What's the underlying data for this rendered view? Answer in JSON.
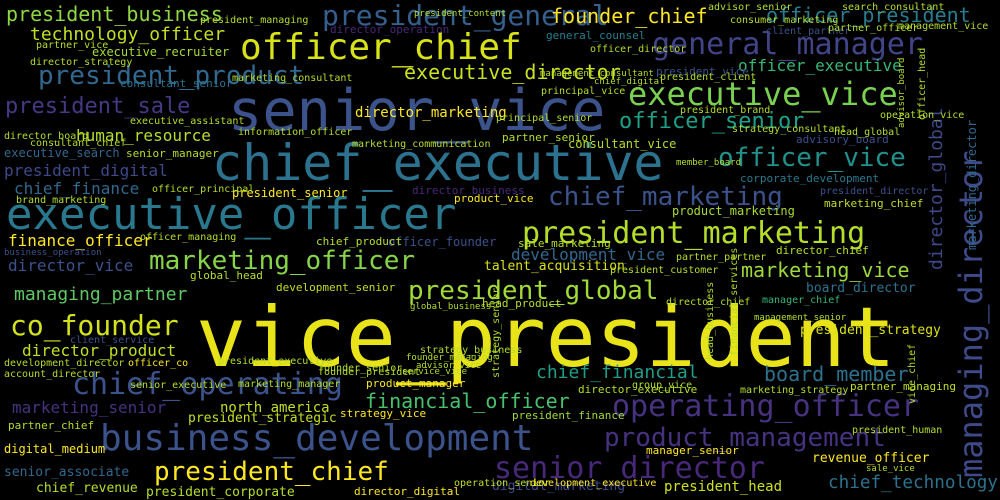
{
  "words": [
    {
      "text": "vice_president",
      "color": "#e8e419"
    },
    {
      "text": "senior_vice",
      "color": "#3b528b"
    },
    {
      "text": "chief_executive",
      "color": "#2c728e"
    },
    {
      "text": "executive_officer",
      "color": "#2a788e"
    },
    {
      "text": "officer_chief",
      "color": "#d8e219"
    },
    {
      "text": "general_manager",
      "color": "#414487"
    },
    {
      "text": "business_development",
      "color": "#3b528b"
    },
    {
      "text": "president_marketing",
      "color": "#b5de2b"
    },
    {
      "text": "executive_vice",
      "color": "#7ad151"
    },
    {
      "text": "managing_director",
      "color": "#3e4a89"
    },
    {
      "text": "operating_officer",
      "color": "#46327e"
    },
    {
      "text": "president_chief",
      "color": "#fde725"
    },
    {
      "text": "senior_director",
      "color": "#482878"
    },
    {
      "text": "chief_operating",
      "color": "#3b528b"
    },
    {
      "text": "marketing_officer",
      "color": "#86d549"
    },
    {
      "text": "president_product",
      "color": "#31688e"
    },
    {
      "text": "officer_vice",
      "color": "#21918c"
    },
    {
      "text": "product_management",
      "color": "#46327e"
    },
    {
      "text": "president_global",
      "color": "#a2da37"
    },
    {
      "text": "chief_marketing",
      "color": "#3b528b"
    },
    {
      "text": "president_business",
      "color": "#8fd744"
    },
    {
      "text": "president_general",
      "color": "#355f8d"
    },
    {
      "text": "founder_chief",
      "color": "#fde725"
    },
    {
      "text": "officer_president",
      "color": "#287c8e"
    },
    {
      "text": "officer_senior",
      "color": "#1fa187"
    },
    {
      "text": "president_sale",
      "color": "#443983"
    },
    {
      "text": "executive_director",
      "color": "#cae11f"
    },
    {
      "text": "technology_officer",
      "color": "#c2df23"
    },
    {
      "text": "co_founder",
      "color": "#d2e21b"
    },
    {
      "text": "marketing_vice",
      "color": "#9dd93b"
    },
    {
      "text": "managing_partner",
      "color": "#5ec962"
    },
    {
      "text": "chief_financial",
      "color": "#1f9e89"
    },
    {
      "text": "board_member",
      "color": "#2c728e"
    },
    {
      "text": "financial_officer",
      "color": "#48c16e"
    },
    {
      "text": "development_vice",
      "color": "#31688e"
    },
    {
      "text": "director_product",
      "color": "#c2df23"
    },
    {
      "text": "human_resource",
      "color": "#b8de29"
    },
    {
      "text": "president_digital",
      "color": "#3e4a89"
    },
    {
      "text": "chief_finance",
      "color": "#31688e"
    },
    {
      "text": "marketing_senior",
      "color": "#46327e"
    },
    {
      "text": "director_vice",
      "color": "#3b528b"
    },
    {
      "text": "finance_officer",
      "color": "#fde725"
    },
    {
      "text": "director_marketing",
      "color": "#fde725"
    },
    {
      "text": "officer_executive",
      "color": "#35b779"
    },
    {
      "text": "chief_technology",
      "color": "#2c728e"
    },
    {
      "text": "president_strategy",
      "color": "#dde318"
    },
    {
      "text": "president_head",
      "color": "#d0e11c"
    },
    {
      "text": "revenue_officer",
      "color": "#fde725"
    },
    {
      "text": "north_america",
      "color": "#c2df23"
    },
    {
      "text": "president_corporate",
      "color": "#b5de2b"
    },
    {
      "text": "chief_revenue",
      "color": "#b5de2b"
    },
    {
      "text": "senior_associate",
      "color": "#31688e"
    },
    {
      "text": "digital_medium",
      "color": "#fde725"
    },
    {
      "text": "marketing_director",
      "color": "#31688e"
    },
    {
      "text": "digital_marketing",
      "color": "#3e4a89"
    },
    {
      "text": "director_global",
      "color": "#3e4a89"
    },
    {
      "text": "talent_acquisition",
      "color": "#d8e219"
    },
    {
      "text": "product_marketing",
      "color": "#a8db34"
    },
    {
      "text": "board_director",
      "color": "#2c728e"
    },
    {
      "text": "president_senior",
      "color": "#fde725"
    },
    {
      "text": "executive_recruiter",
      "color": "#a5db36"
    },
    {
      "text": "director_operation",
      "color": "#482878"
    },
    {
      "text": "president_finance",
      "color": "#9fda3a"
    },
    {
      "text": "consultant_senior",
      "color": "#2c728e"
    },
    {
      "text": "consultant_vice",
      "color": "#b5de2b"
    },
    {
      "text": "president_strategic",
      "color": "#c2df23"
    },
    {
      "text": "officer_founder",
      "color": "#3b528b"
    },
    {
      "text": "general_counsel",
      "color": "#277f8e"
    },
    {
      "text": "corporate_development",
      "color": "#2a788e"
    },
    {
      "text": "marketing_chief",
      "color": "#c2df23"
    },
    {
      "text": "development_senior",
      "color": "#c2df23"
    },
    {
      "text": "president_director",
      "color": "#3b528b"
    },
    {
      "text": "president_vice",
      "color": "#3b528b"
    },
    {
      "text": "advisory_board",
      "color": "#3b528b"
    },
    {
      "text": "director_chief",
      "color": "#b5de2b"
    },
    {
      "text": "director_business",
      "color": "#482878"
    },
    {
      "text": "operation_senior",
      "color": "#c2df23"
    },
    {
      "text": "global_head",
      "color": "#b5de2b"
    },
    {
      "text": "executive_search",
      "color": "#31688e"
    },
    {
      "text": "senior_manager",
      "color": "#b5de2b"
    },
    {
      "text": "development_executive",
      "color": "#fde725"
    },
    {
      "text": "director_executive",
      "color": "#b5de2b"
    },
    {
      "text": "product_manager",
      "color": "#fde725"
    },
    {
      "text": "director_digital",
      "color": "#fde725"
    },
    {
      "text": "manager_senior",
      "color": "#fde725"
    },
    {
      "text": "partner_managing",
      "color": "#c2df23"
    },
    {
      "text": "partner_chief",
      "color": "#b5de2b"
    },
    {
      "text": "consultant_chief",
      "color": "#b5de2b"
    },
    {
      "text": "product_vice",
      "color": "#fde725"
    },
    {
      "text": "chief_product",
      "color": "#b5de2b"
    },
    {
      "text": "partner_senior",
      "color": "#b5de2b"
    },
    {
      "text": "strategy_vice",
      "color": "#fde725"
    },
    {
      "text": "marketing_strategy",
      "color": "#b5de2b"
    },
    {
      "text": "head_product",
      "color": "#b5de2b"
    },
    {
      "text": "sale_marketing",
      "color": "#b5de2b"
    },
    {
      "text": "president_human",
      "color": "#b5de2b"
    },
    {
      "text": "manager_chief",
      "color": "#35b779"
    },
    {
      "text": "advisor_senior",
      "color": "#b5de2b"
    },
    {
      "text": "head_global",
      "color": "#b5de2b"
    },
    {
      "text": "operation_vice",
      "color": "#b5de2b"
    },
    {
      "text": "client_partner",
      "color": "#3b528b"
    },
    {
      "text": "management_vice",
      "color": "#b5de2b"
    },
    {
      "text": "search_consultant",
      "color": "#b5de2b"
    },
    {
      "text": "principal_vice",
      "color": "#b5de2b"
    },
    {
      "text": "group_vice",
      "color": "#b5de2b"
    },
    {
      "text": "business_operation",
      "color": "#3b528b"
    },
    {
      "text": "account_director",
      "color": "#b5de2b"
    },
    {
      "text": "development_director",
      "color": "#b5de2b"
    },
    {
      "text": "officer_co",
      "color": "#fde725"
    },
    {
      "text": "client_service",
      "color": "#3b528b"
    },
    {
      "text": "founder_senior",
      "color": "#b5de2b"
    },
    {
      "text": "senior_executive",
      "color": "#b5de2b"
    },
    {
      "text": "executive_assistant",
      "color": "#b5de2b"
    },
    {
      "text": "partner_vice",
      "color": "#b5de2b"
    },
    {
      "text": "officer_head",
      "color": "#b5de2b"
    },
    {
      "text": "president_client",
      "color": "#b5de2b"
    },
    {
      "text": "marketing_consultant",
      "color": "#b5de2b"
    },
    {
      "text": "director_strategy",
      "color": "#b5de2b"
    },
    {
      "text": "consumer_marketing",
      "color": "#b5de2b"
    },
    {
      "text": "president_managing",
      "color": "#b5de2b"
    },
    {
      "text": "partner_officer",
      "color": "#b5de2b"
    },
    {
      "text": "officer_director",
      "color": "#b5de2b"
    },
    {
      "text": "chief_digital",
      "color": "#b5de2b"
    },
    {
      "text": "officer_managing",
      "color": "#b5de2b"
    },
    {
      "text": "president_brand",
      "color": "#b5de2b"
    },
    {
      "text": "information_officer",
      "color": "#b5de2b"
    },
    {
      "text": "marketing_communication",
      "color": "#b5de2b"
    },
    {
      "text": "strategy_consultant",
      "color": "#b5de2b"
    },
    {
      "text": "principal_senior",
      "color": "#b5de2b"
    },
    {
      "text": "brand_marketing",
      "color": "#b5de2b"
    },
    {
      "text": "president_customer",
      "color": "#b5de2b"
    },
    {
      "text": "global_business",
      "color": "#b5de2b"
    },
    {
      "text": "marketing_manager",
      "color": "#b5de2b"
    },
    {
      "text": "director_board",
      "color": "#b5de2b"
    },
    {
      "text": "partner_partner",
      "color": "#b5de2b"
    },
    {
      "text": "president_executive",
      "color": "#b5de2b"
    },
    {
      "text": "officer_principal",
      "color": "#b5de2b"
    },
    {
      "text": "director_chief",
      "color": "#b5de2b"
    },
    {
      "text": "strategy_business",
      "color": "#b5de2b"
    },
    {
      "text": "management_consultant",
      "color": "#b5de2b"
    },
    {
      "text": "management_senior",
      "color": "#b5de2b"
    },
    {
      "text": "founder_president",
      "color": "#b5de2b"
    },
    {
      "text": "founder_managing",
      "color": "#b5de2b"
    },
    {
      "text": "advisor_vice",
      "color": "#b5de2b"
    },
    {
      "text": "strategy_senior",
      "color": "#b5de2b"
    },
    {
      "text": "advisor_board",
      "color": "#b5de2b"
    },
    {
      "text": "vice_chief",
      "color": "#b5de2b"
    },
    {
      "text": "service_vice",
      "color": "#b5de2b"
    },
    {
      "text": "financial_services",
      "color": "#b5de2b"
    },
    {
      "text": "sale_vice",
      "color": "#b5de2b"
    },
    {
      "text": "head_business",
      "color": "#b5de2b"
    },
    {
      "text": "president_content",
      "color": "#b5de2b"
    },
    {
      "text": "member_board",
      "color": "#b5de2b"
    }
  ]
}
